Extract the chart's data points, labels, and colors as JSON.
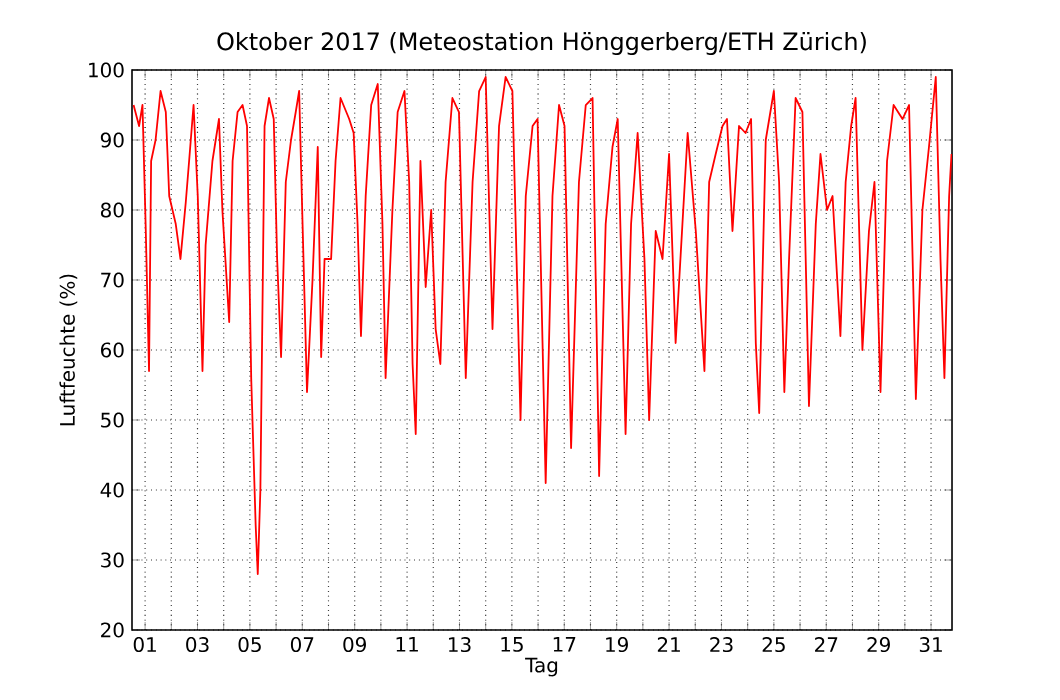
{
  "chart_data": {
    "type": "line",
    "title": "Oktober 2017  (Meteostation Hönggerberg/ETH Zürich)",
    "xlabel": "Tag",
    "ylabel": "Luftfeuchte (%)",
    "color": "#ff0000",
    "grid": true,
    "line_style": "solid",
    "xlim": [
      0.5,
      31.8
    ],
    "ylim": [
      20,
      100
    ],
    "xticks": [
      {
        "value": 1,
        "label": "01"
      },
      {
        "value": 2,
        "label": null
      },
      {
        "value": 3,
        "label": "03"
      },
      {
        "value": 4,
        "label": null
      },
      {
        "value": 5,
        "label": "05"
      },
      {
        "value": 6,
        "label": null
      },
      {
        "value": 7,
        "label": "07"
      },
      {
        "value": 8,
        "label": null
      },
      {
        "value": 9,
        "label": "09"
      },
      {
        "value": 10,
        "label": null
      },
      {
        "value": 11,
        "label": "11"
      },
      {
        "value": 12,
        "label": null
      },
      {
        "value": 13,
        "label": "13"
      },
      {
        "value": 14,
        "label": null
      },
      {
        "value": 15,
        "label": "15"
      },
      {
        "value": 16,
        "label": null
      },
      {
        "value": 17,
        "label": "17"
      },
      {
        "value": 18,
        "label": null
      },
      {
        "value": 19,
        "label": "19"
      },
      {
        "value": 20,
        "label": null
      },
      {
        "value": 21,
        "label": "21"
      },
      {
        "value": 22,
        "label": null
      },
      {
        "value": 23,
        "label": "23"
      },
      {
        "value": 24,
        "label": null
      },
      {
        "value": 25,
        "label": "25"
      },
      {
        "value": 26,
        "label": null
      },
      {
        "value": 27,
        "label": "27"
      },
      {
        "value": 28,
        "label": null
      },
      {
        "value": 29,
        "label": "29"
      },
      {
        "value": 30,
        "label": null
      },
      {
        "value": 31,
        "label": "31"
      }
    ],
    "yticks": [
      20,
      30,
      40,
      50,
      60,
      70,
      80,
      90,
      100
    ],
    "x": [
      0.56,
      0.77,
      0.9,
      1.02,
      1.15,
      1.23,
      1.4,
      1.59,
      1.79,
      1.92,
      2.17,
      2.35,
      2.55,
      2.68,
      2.85,
      3.01,
      3.19,
      3.31,
      3.57,
      3.82,
      3.95,
      4.21,
      4.34,
      4.53,
      4.72,
      4.89,
      5.05,
      5.22,
      5.3,
      5.4,
      5.56,
      5.73,
      5.91,
      6.04,
      6.19,
      6.37,
      6.57,
      6.75,
      6.88,
      7.01,
      7.18,
      7.39,
      7.59,
      7.72,
      7.85,
      8.1,
      8.27,
      8.46,
      8.79,
      8.96,
      9.11,
      9.24,
      9.42,
      9.63,
      9.88,
      10.06,
      10.18,
      10.44,
      10.64,
      10.9,
      11.08,
      11.21,
      11.33,
      11.51,
      11.71,
      11.92,
      12.09,
      12.27,
      12.47,
      12.73,
      12.98,
      13.24,
      13.5,
      13.75,
      14.0,
      14.26,
      14.51,
      14.76,
      15.02,
      15.33,
      15.53,
      15.79,
      15.98,
      16.17,
      16.29,
      16.55,
      16.8,
      17.01,
      17.26,
      17.56,
      17.82,
      18.08,
      18.33,
      18.58,
      18.84,
      19.04,
      19.34,
      19.55,
      19.8,
      20.06,
      20.24,
      20.49,
      20.75,
      21.0,
      21.25,
      21.51,
      21.71,
      22.02,
      22.35,
      22.53,
      22.78,
      23.04,
      23.21,
      23.42,
      23.67,
      23.92,
      24.13,
      24.31,
      24.44,
      24.69,
      25.0,
      25.2,
      25.4,
      25.58,
      25.83,
      26.09,
      26.34,
      26.6,
      26.78,
      27.03,
      27.24,
      27.54,
      27.74,
      27.95,
      28.12,
      28.38,
      28.63,
      28.84,
      29.07,
      29.32,
      29.57,
      29.91,
      30.16,
      30.42,
      30.67,
      30.92,
      31.18,
      31.36,
      31.51,
      31.69,
      31.78
    ],
    "values": [
      95,
      92,
      95,
      78,
      57,
      87,
      90,
      97,
      94,
      82,
      78,
      73,
      81,
      87,
      95,
      82,
      57,
      75,
      87,
      93,
      80,
      64,
      87,
      94,
      95,
      92,
      56,
      35,
      28,
      40,
      92,
      96,
      93,
      73,
      59,
      84,
      90,
      94,
      97,
      78,
      54,
      70,
      89,
      59,
      73,
      73,
      87,
      96,
      93,
      91,
      78,
      62,
      82,
      95,
      98,
      78,
      56,
      80,
      94,
      97,
      84,
      58,
      48,
      87,
      69,
      80,
      63,
      58,
      84,
      96,
      94,
      56,
      84,
      97,
      99,
      63,
      92,
      99,
      97,
      50,
      82,
      92,
      93,
      61,
      41,
      82,
      95,
      92,
      46,
      84,
      95,
      96,
      42,
      78,
      89,
      93,
      48,
      78,
      91,
      73,
      50,
      77,
      73,
      88,
      61,
      78,
      91,
      77,
      57,
      84,
      88,
      92,
      93,
      77,
      92,
      91,
      93,
      61,
      51,
      90,
      97,
      84,
      54,
      73,
      96,
      94,
      52,
      78,
      88,
      80,
      82,
      62,
      84,
      92,
      96,
      60,
      77,
      84,
      54,
      87,
      95,
      93,
      95,
      53,
      80,
      89,
      99,
      73,
      56,
      82,
      88
    ]
  }
}
